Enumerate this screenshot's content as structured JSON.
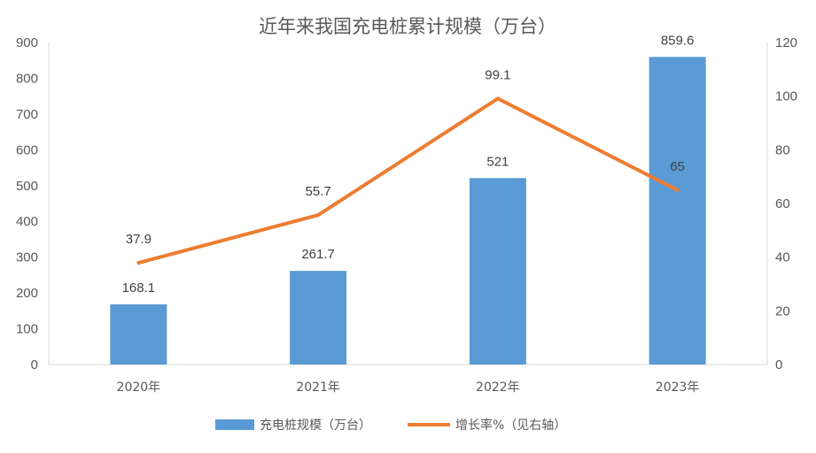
{
  "chart_data": {
    "type": "bar+line",
    "title": "近年来我国充电桩累计规模（万台）",
    "categories": [
      "2020年",
      "2021年",
      "2022年",
      "2023年"
    ],
    "series": [
      {
        "name": "充电桩规模（万台）",
        "type": "bar",
        "axis": "left",
        "color": "#5B9BD5",
        "values": [
          168.1,
          261.7,
          521,
          859.6
        ],
        "labels": [
          "168.1",
          "261.7",
          "521",
          "859.6"
        ]
      },
      {
        "name": "增长率%（见右轴）",
        "type": "line",
        "axis": "right",
        "color": "#ED7D31",
        "values": [
          37.9,
          55.7,
          99.1,
          65
        ],
        "labels": [
          "37.9",
          "55.7",
          "99.1",
          "65"
        ]
      }
    ],
    "y_left": {
      "min": 0,
      "max": 900,
      "step": 100,
      "ticks": [
        "0",
        "100",
        "200",
        "300",
        "400",
        "500",
        "600",
        "700",
        "800",
        "900"
      ]
    },
    "y_right": {
      "min": 0,
      "max": 120,
      "step": 20,
      "ticks": [
        "0",
        "20",
        "40",
        "60",
        "80",
        "100",
        "120"
      ]
    },
    "grid": false,
    "legend": "bottom"
  }
}
